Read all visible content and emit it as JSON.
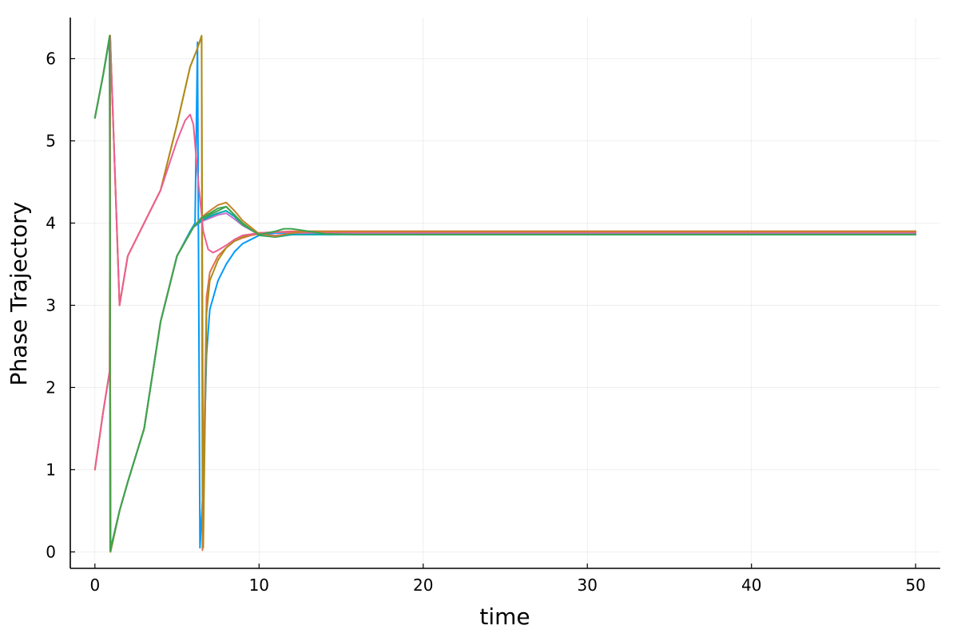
{
  "chart_data": {
    "type": "line",
    "title": "",
    "xlabel": "time",
    "ylabel": "Phase Trajectory",
    "xlim": [
      -1.5,
      51.5
    ],
    "ylim": [
      -0.2,
      6.5
    ],
    "xticks": [
      0,
      10,
      20,
      30,
      40,
      50
    ],
    "yticks": [
      0,
      1,
      2,
      3,
      4,
      5,
      6
    ],
    "xtick_labels": [
      "0",
      "10",
      "20",
      "30",
      "40",
      "50"
    ],
    "ytick_labels": [
      "0",
      "1",
      "2",
      "3",
      "4",
      "5",
      "6"
    ],
    "grid": true,
    "legend": "none",
    "series": [
      {
        "color": "#009AFA",
        "x": [
          0,
          0.5,
          0.9,
          0.93,
          1.5,
          2,
          3,
          4,
          5,
          5.8,
          6.1,
          6.25,
          6.4,
          6.6,
          6.8,
          7,
          7.5,
          8,
          8.5,
          9,
          9.5,
          10,
          11,
          12,
          13,
          14,
          16,
          20,
          30,
          40,
          50
        ],
        "y": [
          5.28,
          5.8,
          6.25,
          0.02,
          0.5,
          0.85,
          1.5,
          2.8,
          3.6,
          3.9,
          4.0,
          6.2,
          0.05,
          0.8,
          2.4,
          2.95,
          3.3,
          3.5,
          3.65,
          3.75,
          3.8,
          3.85,
          3.88,
          3.88,
          3.88,
          3.88,
          3.88,
          3.88,
          3.88,
          3.88,
          3.88
        ]
      },
      {
        "color": "#E36F47",
        "x": [
          0,
          0.5,
          0.9,
          0.93,
          1.5,
          2,
          3,
          4,
          5,
          5.8,
          6.2,
          6.5,
          6.55,
          6.8,
          7,
          7.5,
          8,
          8.5,
          9,
          9.5,
          10,
          11,
          12,
          13,
          14,
          16,
          20,
          30,
          40,
          50
        ],
        "y": [
          1.0,
          1.7,
          2.2,
          6.28,
          3.0,
          3.6,
          4.0,
          4.4,
          5.2,
          5.9,
          6.1,
          6.27,
          0.02,
          3.1,
          3.4,
          3.6,
          3.7,
          3.78,
          3.82,
          3.85,
          3.87,
          3.89,
          3.9,
          3.9,
          3.9,
          3.9,
          3.9,
          3.9,
          3.9,
          3.9
        ]
      },
      {
        "color": "#3EA44E",
        "x": [
          0,
          0.5,
          0.9,
          0.95,
          1.5,
          2,
          3,
          4,
          5,
          6,
          6.5,
          7,
          7.5,
          8,
          8.5,
          9,
          10,
          11,
          12,
          13,
          14,
          16,
          20,
          30,
          40,
          50
        ],
        "y": [
          5.28,
          5.8,
          6.28,
          0.0,
          0.5,
          0.85,
          1.5,
          2.8,
          3.6,
          3.95,
          4.05,
          4.1,
          4.15,
          4.2,
          4.1,
          4.0,
          3.85,
          3.83,
          3.86,
          3.87,
          3.87,
          3.87,
          3.87,
          3.87,
          3.87,
          3.87
        ]
      },
      {
        "color": "#C271D2",
        "x": [
          0,
          0.5,
          0.9,
          0.95,
          1.5,
          2,
          3,
          4,
          5,
          6,
          6.5,
          7,
          7.5,
          8,
          8.5,
          9,
          10,
          11,
          12,
          13,
          14,
          16,
          20,
          30,
          40,
          50
        ],
        "y": [
          5.28,
          5.8,
          6.25,
          0.02,
          0.5,
          0.85,
          1.5,
          2.8,
          3.6,
          3.95,
          4.02,
          4.06,
          4.1,
          4.12,
          4.05,
          3.97,
          3.86,
          3.85,
          3.87,
          3.88,
          3.88,
          3.88,
          3.88,
          3.88,
          3.88,
          3.88
        ]
      },
      {
        "color": "#AC8D18",
        "x": [
          0,
          0.5,
          0.9,
          0.93,
          1.5,
          2,
          3,
          4,
          5,
          5.8,
          6.2,
          6.5,
          6.6,
          6.8,
          7,
          7.5,
          8,
          8.5,
          9,
          9.5,
          10,
          11,
          12,
          13,
          14,
          16,
          20,
          30,
          40,
          50
        ],
        "y": [
          1.0,
          1.7,
          2.2,
          6.28,
          3.0,
          3.6,
          4.0,
          4.4,
          5.2,
          5.9,
          6.1,
          6.28,
          0.05,
          2.9,
          3.3,
          3.55,
          3.7,
          3.78,
          3.83,
          3.86,
          3.88,
          3.89,
          3.89,
          3.89,
          3.89,
          3.89,
          3.89,
          3.89,
          3.89,
          3.89
        ]
      },
      {
        "color": "#00A9AD",
        "x": [
          0,
          0.5,
          0.9,
          0.95,
          1.5,
          2,
          3,
          4,
          5,
          6,
          6.5,
          7,
          7.5,
          8,
          8.5,
          9,
          10,
          11,
          12,
          13,
          14,
          16,
          20,
          30,
          40,
          50
        ],
        "y": [
          5.28,
          5.8,
          6.26,
          0.01,
          0.5,
          0.85,
          1.5,
          2.8,
          3.6,
          3.95,
          4.03,
          4.08,
          4.12,
          4.15,
          4.08,
          3.98,
          3.86,
          3.84,
          3.86,
          3.86,
          3.86,
          3.86,
          3.86,
          3.86,
          3.86,
          3.86
        ]
      },
      {
        "color": "#ED5E93",
        "x": [
          0,
          0.5,
          0.9,
          0.93,
          1.5,
          2,
          3,
          4,
          5,
          5.5,
          5.8,
          6.0,
          6.3,
          6.6,
          6.9,
          7.2,
          7.5,
          8,
          8.5,
          9,
          10,
          11,
          12,
          13,
          14,
          16,
          20,
          30,
          40,
          50
        ],
        "y": [
          1.0,
          1.7,
          2.2,
          6.26,
          3.0,
          3.6,
          4.0,
          4.4,
          5.0,
          5.25,
          5.32,
          5.2,
          4.5,
          3.9,
          3.68,
          3.64,
          3.67,
          3.73,
          3.8,
          3.85,
          3.88,
          3.89,
          3.89,
          3.89,
          3.89,
          3.89,
          3.89,
          3.89,
          3.89,
          3.89
        ]
      },
      {
        "color": "#C68225",
        "x": [
          0,
          0.5,
          0.9,
          0.95,
          1.5,
          2,
          3,
          4,
          5,
          6,
          6.5,
          7,
          7.5,
          8,
          8.5,
          9,
          10,
          11,
          12,
          13,
          14,
          16,
          20,
          30,
          40,
          50
        ],
        "y": [
          5.28,
          5.8,
          6.27,
          0.0,
          0.5,
          0.85,
          1.5,
          2.8,
          3.6,
          3.95,
          4.07,
          4.15,
          4.22,
          4.25,
          4.15,
          4.03,
          3.87,
          3.84,
          3.88,
          3.9,
          3.9,
          3.9,
          3.9,
          3.9,
          3.9,
          3.9
        ]
      },
      {
        "color": "#3EA44E",
        "x": [
          0,
          0.5,
          0.9,
          0.93,
          1.5,
          2,
          3,
          4,
          5,
          6,
          6.5,
          7,
          7.5,
          8,
          8.5,
          9,
          10,
          11,
          11.5,
          12,
          13,
          14,
          16,
          20,
          30,
          40,
          50
        ],
        "y": [
          5.28,
          5.8,
          6.28,
          0.01,
          0.5,
          0.85,
          1.5,
          2.8,
          3.6,
          3.95,
          4.06,
          4.12,
          4.18,
          4.2,
          4.1,
          3.98,
          3.86,
          3.9,
          3.93,
          3.93,
          3.9,
          3.87,
          3.86,
          3.86,
          3.86,
          3.86,
          3.86
        ]
      }
    ]
  }
}
